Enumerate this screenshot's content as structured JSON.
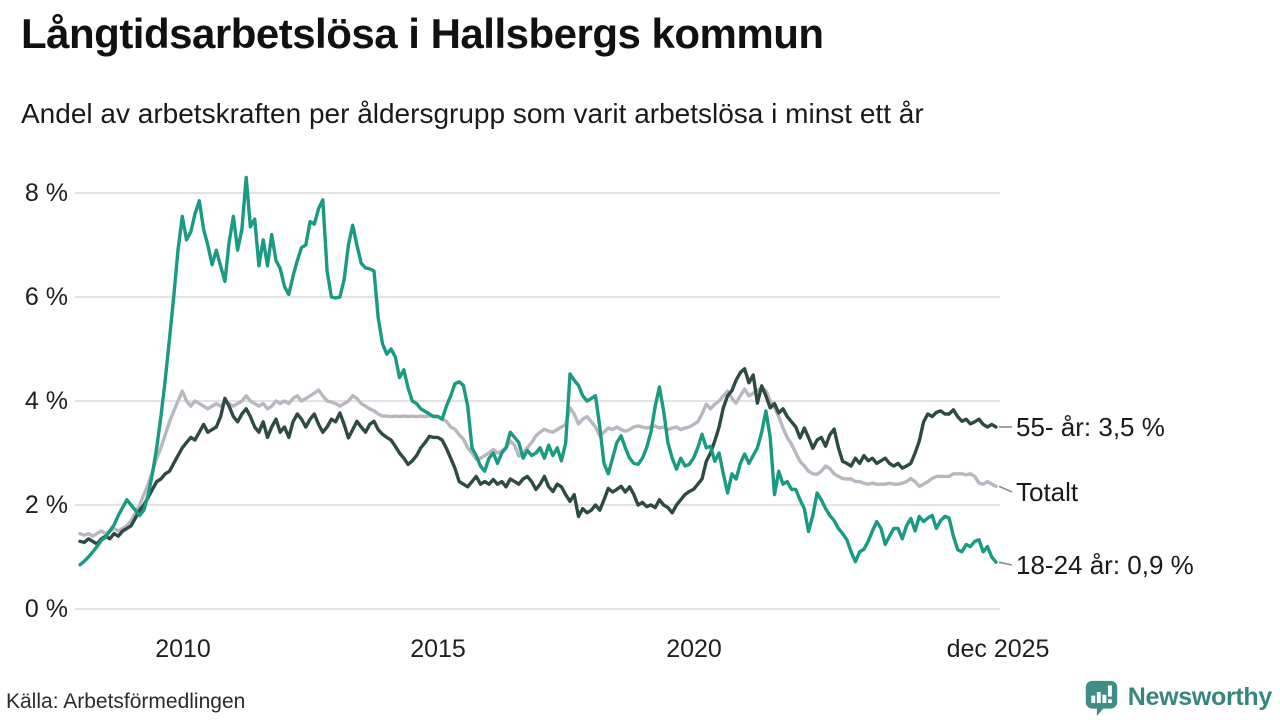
{
  "header": {
    "title": "Långtidsarbetslösa i Hallsbergs kommun",
    "subtitle": "Andel av arbetskraften per åldersgrupp som varit arbetslösa i minst ett år"
  },
  "footer": {
    "source": "Källa: Arbetsförmedlingen",
    "brand_name": "Newsworthy",
    "brand_color": "#3e8e85",
    "brand_icon": "speech-bubble-bar-chart-icon"
  },
  "chart_data": {
    "type": "line",
    "title": "Långtidsarbetslösa i Hallsbergs kommun",
    "subtitle": "Andel av arbetskraften per åldersgrupp som varit arbetslösa i minst ett år",
    "x_domain": [
      "2008-01",
      "2025-12"
    ],
    "x_interval": "month",
    "x_tick_labels": [
      "2010",
      "2015",
      "2020",
      "dec 2025"
    ],
    "x_tick_indices": [
      24,
      84,
      144,
      215
    ],
    "y_tick_labels": [
      "0 %",
      "2 %",
      "4 %",
      "6 %",
      "8 %"
    ],
    "y_tick_values": [
      0,
      2,
      4,
      6,
      8
    ],
    "ylim": [
      0,
      8.6
    ],
    "grid": "horizontal",
    "legend_position": "right-end-labels",
    "grid_color": "#e3e3e6",
    "series": [
      {
        "name": "Totalt",
        "end_label": "Totalt",
        "color": "#b8b7c0",
        "values": [
          1.45,
          1.42,
          1.45,
          1.4,
          1.45,
          1.5,
          1.45,
          1.5,
          1.55,
          1.5,
          1.55,
          1.6,
          1.7,
          1.85,
          2.0,
          2.2,
          2.4,
          2.65,
          2.9,
          3.1,
          3.35,
          3.6,
          3.8,
          4.0,
          4.19,
          4.0,
          3.9,
          4.0,
          3.95,
          3.9,
          3.85,
          3.9,
          3.95,
          3.9,
          4.0,
          3.95,
          3.9,
          3.95,
          4.0,
          4.1,
          4.0,
          3.95,
          3.9,
          3.95,
          3.85,
          3.9,
          4.0,
          3.95,
          4.0,
          3.95,
          4.05,
          4.1,
          4.0,
          4.05,
          4.1,
          4.15,
          4.21,
          4.1,
          4.0,
          3.98,
          3.95,
          3.9,
          3.95,
          4.0,
          4.1,
          4.05,
          3.95,
          3.9,
          3.85,
          3.81,
          3.75,
          3.71,
          3.71,
          3.7,
          3.71,
          3.7,
          3.71,
          3.7,
          3.71,
          3.7,
          3.71,
          3.7,
          3.71,
          3.71,
          3.71,
          3.65,
          3.61,
          3.5,
          3.46,
          3.35,
          3.27,
          3.1,
          3.0,
          2.88,
          2.9,
          2.95,
          3.0,
          3.07,
          3.0,
          3.04,
          3.1,
          3.23,
          3.15,
          2.94,
          3.0,
          3.1,
          3.2,
          3.33,
          3.4,
          3.46,
          3.42,
          3.4,
          3.45,
          3.5,
          3.55,
          3.87,
          3.75,
          3.56,
          3.65,
          3.7,
          3.6,
          3.5,
          3.33,
          3.4,
          3.48,
          3.45,
          3.5,
          3.45,
          3.42,
          3.45,
          3.5,
          3.52,
          3.5,
          3.48,
          3.5,
          3.52,
          3.48,
          3.5,
          3.45,
          3.48,
          3.5,
          3.45,
          3.48,
          3.5,
          3.55,
          3.6,
          3.75,
          3.94,
          3.85,
          3.94,
          4.0,
          4.1,
          4.19,
          4.05,
          3.96,
          4.1,
          4.23,
          4.1,
          4.15,
          4.2,
          4.25,
          4.2,
          4.0,
          3.87,
          3.7,
          3.48,
          3.3,
          3.17,
          3.0,
          2.84,
          2.75,
          2.65,
          2.6,
          2.59,
          2.65,
          2.75,
          2.7,
          2.6,
          2.55,
          2.51,
          2.5,
          2.5,
          2.45,
          2.45,
          2.42,
          2.4,
          2.42,
          2.4,
          2.4,
          2.4,
          2.42,
          2.4,
          2.4,
          2.42,
          2.45,
          2.51,
          2.45,
          2.36,
          2.4,
          2.45,
          2.51,
          2.55,
          2.55,
          2.55,
          2.55,
          2.6,
          2.6,
          2.6,
          2.58,
          2.6,
          2.55,
          2.42,
          2.4,
          2.45,
          2.4,
          2.36
        ]
      },
      {
        "name": "55- år",
        "end_label": "55- år: 3,5 %",
        "end_value_text": "3,5 %",
        "color": "#2d4b42",
        "values": [
          1.3,
          1.28,
          1.35,
          1.3,
          1.25,
          1.35,
          1.4,
          1.35,
          1.45,
          1.4,
          1.5,
          1.55,
          1.6,
          1.75,
          1.9,
          2.0,
          2.15,
          2.3,
          2.45,
          2.5,
          2.6,
          2.65,
          2.8,
          2.95,
          3.1,
          3.2,
          3.3,
          3.25,
          3.4,
          3.55,
          3.4,
          3.45,
          3.5,
          3.7,
          4.05,
          3.9,
          3.7,
          3.6,
          3.75,
          3.85,
          3.7,
          3.5,
          3.4,
          3.6,
          3.3,
          3.5,
          3.65,
          3.4,
          3.5,
          3.3,
          3.6,
          3.75,
          3.65,
          3.5,
          3.65,
          3.75,
          3.55,
          3.4,
          3.5,
          3.65,
          3.6,
          3.77,
          3.55,
          3.29,
          3.45,
          3.61,
          3.5,
          3.4,
          3.55,
          3.61,
          3.45,
          3.36,
          3.3,
          3.25,
          3.13,
          3.0,
          2.9,
          2.78,
          2.85,
          2.95,
          3.1,
          3.2,
          3.32,
          3.3,
          3.3,
          3.25,
          3.09,
          2.9,
          2.71,
          2.45,
          2.4,
          2.35,
          2.45,
          2.55,
          2.4,
          2.45,
          2.4,
          2.49,
          2.4,
          2.45,
          2.35,
          2.5,
          2.45,
          2.4,
          2.5,
          2.55,
          2.45,
          2.3,
          2.4,
          2.55,
          2.35,
          2.26,
          2.4,
          2.35,
          2.2,
          2.07,
          2.2,
          1.78,
          1.93,
          1.85,
          1.9,
          2.0,
          1.9,
          2.1,
          2.32,
          2.25,
          2.3,
          2.36,
          2.25,
          2.35,
          2.2,
          2.0,
          2.05,
          1.97,
          2.0,
          1.95,
          2.1,
          2.0,
          1.95,
          1.85,
          2.0,
          2.1,
          2.2,
          2.26,
          2.3,
          2.4,
          2.5,
          2.84,
          3.0,
          3.23,
          3.5,
          3.87,
          4.1,
          4.2,
          4.4,
          4.55,
          4.62,
          4.35,
          4.5,
          3.96,
          4.29,
          4.1,
          3.87,
          3.95,
          3.77,
          3.85,
          3.7,
          3.6,
          3.5,
          3.29,
          3.48,
          3.3,
          3.09,
          3.25,
          3.3,
          3.13,
          3.35,
          3.46,
          3.1,
          2.84,
          2.8,
          2.75,
          2.9,
          2.8,
          2.95,
          2.85,
          2.9,
          2.8,
          2.85,
          2.9,
          2.8,
          2.75,
          2.8,
          2.71,
          2.75,
          2.8,
          3.0,
          3.23,
          3.6,
          3.75,
          3.7,
          3.78,
          3.81,
          3.75,
          3.75,
          3.83,
          3.7,
          3.61,
          3.65,
          3.56,
          3.6,
          3.65,
          3.55,
          3.5,
          3.55,
          3.5
        ]
      },
      {
        "name": "18-24 år",
        "end_label": "18-24 år: 0,9 %",
        "end_value_text": "0,9 %",
        "color": "#1b9a82",
        "values": [
          0.85,
          0.92,
          1.0,
          1.1,
          1.2,
          1.32,
          1.38,
          1.5,
          1.62,
          1.8,
          1.95,
          2.1,
          2.0,
          1.9,
          1.8,
          1.9,
          2.2,
          2.6,
          3.1,
          3.7,
          4.4,
          5.2,
          6.0,
          6.9,
          7.55,
          7.1,
          7.25,
          7.6,
          7.85,
          7.3,
          7.0,
          6.62,
          6.9,
          6.6,
          6.3,
          7.05,
          7.55,
          6.9,
          7.3,
          8.3,
          7.35,
          7.5,
          6.6,
          7.1,
          6.6,
          7.2,
          6.7,
          6.55,
          6.2,
          6.05,
          6.4,
          6.7,
          6.95,
          7.0,
          7.45,
          7.4,
          7.7,
          7.87,
          6.5,
          6.0,
          5.98,
          6.0,
          6.33,
          7.0,
          7.38,
          7.0,
          6.65,
          6.56,
          6.54,
          6.5,
          5.6,
          5.1,
          4.9,
          5.0,
          4.85,
          4.45,
          4.6,
          4.25,
          4.0,
          3.95,
          3.85,
          3.8,
          3.75,
          3.7,
          3.7,
          3.65,
          3.9,
          4.1,
          4.33,
          4.37,
          4.3,
          3.9,
          3.1,
          2.95,
          2.75,
          2.65,
          2.9,
          3.0,
          2.8,
          3.0,
          3.1,
          3.4,
          3.3,
          3.2,
          2.9,
          3.05,
          2.95,
          3.0,
          3.1,
          2.9,
          3.15,
          2.95,
          3.1,
          2.85,
          3.2,
          4.52,
          4.4,
          4.3,
          4.1,
          4.0,
          4.05,
          4.1,
          3.5,
          2.8,
          2.6,
          2.9,
          3.2,
          3.33,
          3.1,
          2.9,
          2.8,
          2.78,
          2.9,
          3.1,
          3.4,
          3.9,
          4.27,
          3.8,
          3.2,
          2.9,
          2.69,
          2.9,
          2.75,
          2.78,
          2.9,
          3.1,
          3.36,
          3.1,
          3.13,
          2.84,
          3.0,
          2.6,
          2.23,
          2.6,
          2.5,
          2.8,
          2.98,
          2.8,
          2.95,
          3.1,
          3.4,
          3.81,
          3.3,
          2.2,
          2.65,
          2.4,
          2.45,
          2.3,
          2.3,
          2.1,
          1.93,
          1.49,
          1.8,
          2.23,
          2.1,
          1.93,
          1.8,
          1.7,
          1.55,
          1.45,
          1.33,
          1.1,
          0.91,
          1.1,
          1.15,
          1.3,
          1.5,
          1.68,
          1.55,
          1.24,
          1.4,
          1.55,
          1.55,
          1.35,
          1.6,
          1.74,
          1.5,
          1.78,
          1.68,
          1.75,
          1.8,
          1.55,
          1.7,
          1.78,
          1.75,
          1.4,
          1.14,
          1.1,
          1.24,
          1.2,
          1.3,
          1.33,
          1.1,
          1.2,
          1.0,
          0.9
        ]
      }
    ]
  }
}
